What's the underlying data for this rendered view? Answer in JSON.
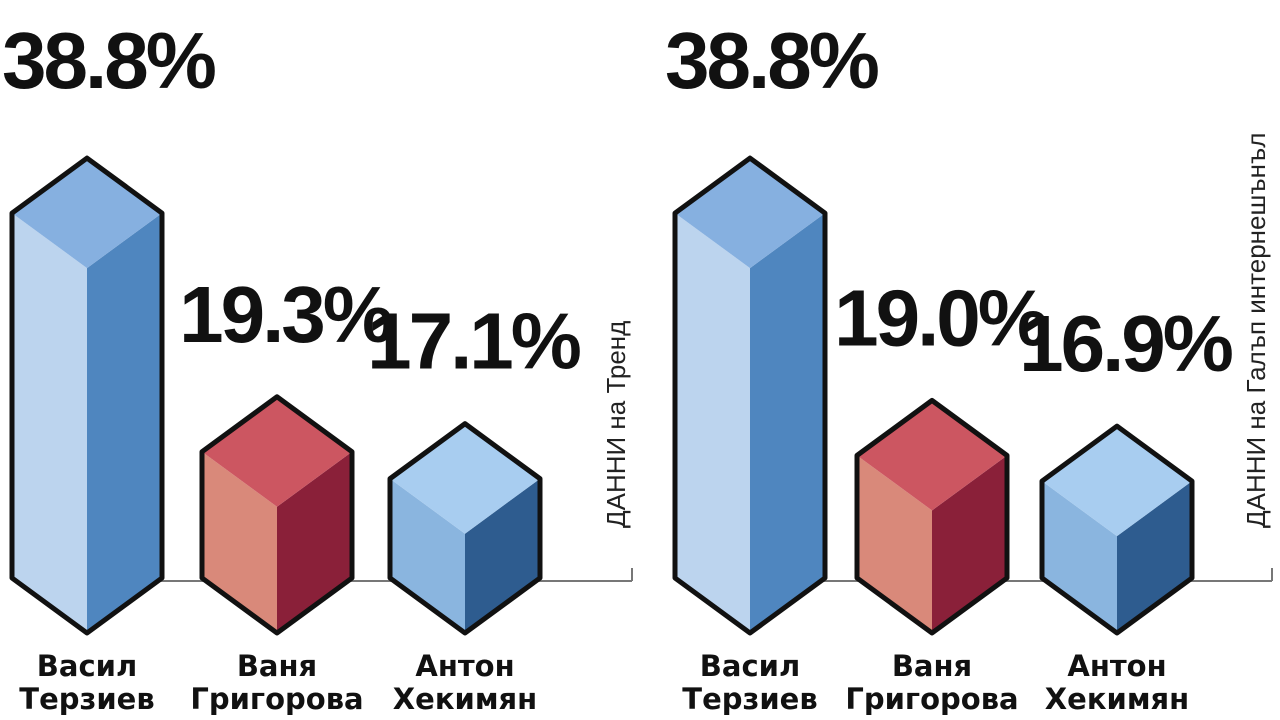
{
  "chart_data": [
    {
      "type": "bar",
      "categories": [
        "Васил Терзиев",
        "Ваня Григорова",
        "Антон Хекимян"
      ],
      "category_lines": [
        [
          "Васил",
          "Терзиев"
        ],
        [
          "Ваня",
          "Григорова"
        ],
        [
          "Антон",
          "Хекимян"
        ]
      ],
      "values": [
        38.8,
        19.3,
        17.1
      ],
      "value_labels": [
        "38.8%",
        "19.3%",
        "17.1%"
      ],
      "source": "ДАННИ на Тренд",
      "ylim": [
        0,
        40
      ],
      "grid": false,
      "legend": "none"
    },
    {
      "type": "bar",
      "categories": [
        "Васил Терзиев",
        "Ваня Григорова",
        "Антон Хекимян"
      ],
      "category_lines": [
        [
          "Васил",
          "Терзиев"
        ],
        [
          "Ваня",
          "Григорова"
        ],
        [
          "Антон",
          "Хекимян"
        ]
      ],
      "values": [
        38.8,
        19.0,
        16.9
      ],
      "value_labels": [
        "38.8%",
        "19.0%",
        "16.9%"
      ],
      "source": "ДАННИ на Галъп интернешънъл",
      "ylim": [
        0,
        40
      ],
      "grid": false,
      "legend": "none"
    }
  ],
  "bar_colors": [
    {
      "front": "#bcd4ee",
      "side": "#4f86bf",
      "top": "#86b0e0"
    },
    {
      "front": "#d9897a",
      "side": "#8a2039",
      "top": "#cc5661"
    },
    {
      "front": "#8ab5df",
      "side": "#2e5c8f",
      "top": "#a8cdf0"
    }
  ]
}
